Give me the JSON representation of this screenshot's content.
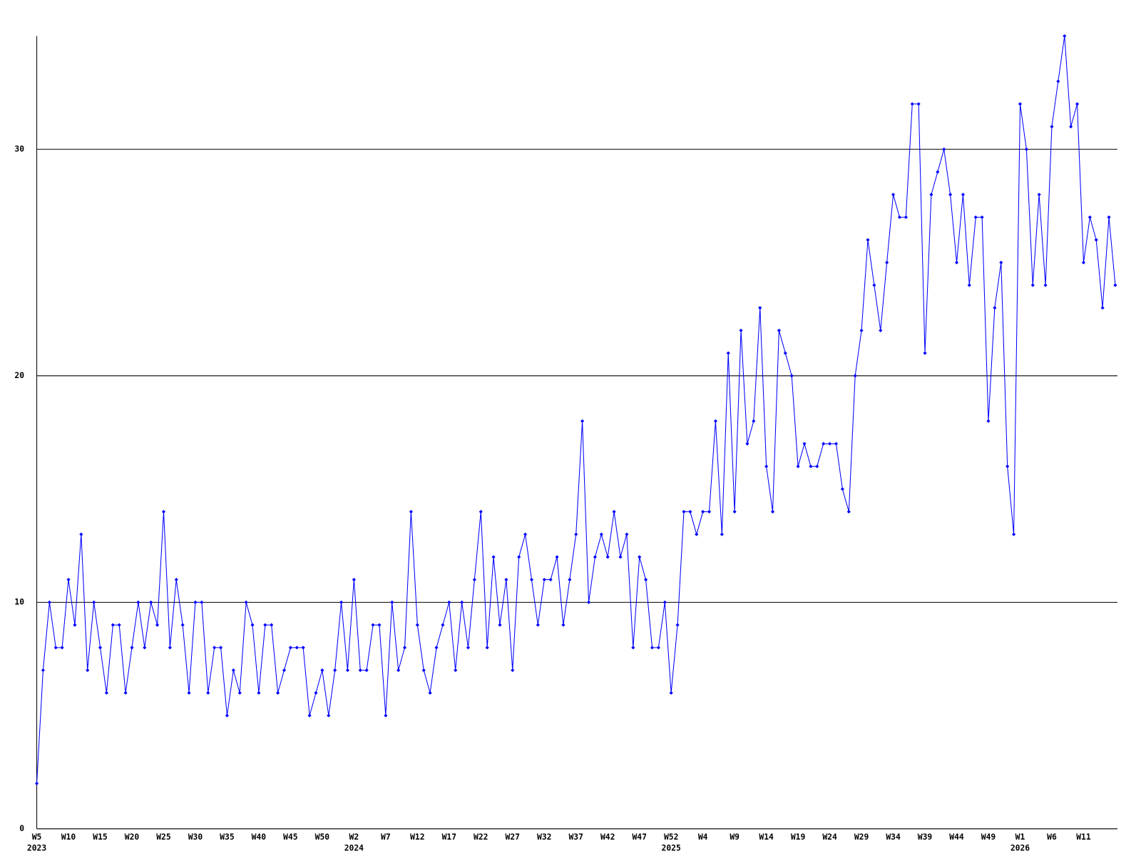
{
  "chart_data": {
    "type": "line",
    "categories": [
      "W5",
      null,
      null,
      null,
      null,
      "W10",
      null,
      null,
      null,
      null,
      "W15",
      null,
      null,
      null,
      null,
      "W20",
      null,
      null,
      null,
      null,
      "W25",
      null,
      null,
      null,
      null,
      "W30",
      null,
      null,
      null,
      null,
      "W35",
      null,
      null,
      null,
      null,
      "W40",
      null,
      null,
      null,
      null,
      "W45",
      null,
      null,
      null,
      null,
      "W50",
      null,
      null,
      null,
      null,
      "W2",
      null,
      null,
      null,
      null,
      "W7",
      null,
      null,
      null,
      null,
      "W12",
      null,
      null,
      null,
      null,
      "W17",
      null,
      null,
      null,
      null,
      "W22",
      null,
      null,
      null,
      null,
      "W27",
      null,
      null,
      null,
      null,
      "W32",
      null,
      null,
      null,
      null,
      "W37",
      null,
      null,
      null,
      null,
      "W42",
      null,
      null,
      null,
      null,
      "W47",
      null,
      null,
      null,
      null,
      "W52",
      null,
      null,
      null,
      null,
      "W4",
      null,
      null,
      null,
      null,
      "W9",
      null,
      null,
      null,
      null,
      "W14",
      null,
      null,
      null,
      null,
      "W19",
      null,
      null,
      null,
      null,
      "W24",
      null,
      null,
      null,
      null,
      "W29",
      null,
      null,
      null,
      null,
      "W34",
      null,
      null,
      null,
      null,
      "W39",
      null,
      null,
      null,
      null,
      "W44",
      null,
      null,
      null,
      null,
      "W49",
      null,
      null,
      null,
      null,
      "W1",
      null,
      null,
      null,
      null,
      "W6",
      null,
      null,
      null,
      null,
      "W11",
      null,
      null,
      null,
      null,
      null
    ],
    "category_years": [
      "2023",
      null,
      null,
      null,
      null,
      null,
      null,
      null,
      null,
      null,
      null,
      null,
      null,
      null,
      null,
      null,
      null,
      null,
      null,
      null,
      null,
      null,
      null,
      null,
      null,
      null,
      null,
      null,
      null,
      null,
      null,
      null,
      null,
      null,
      null,
      null,
      null,
      null,
      null,
      null,
      null,
      null,
      null,
      null,
      null,
      null,
      null,
      null,
      null,
      null,
      "2024",
      null,
      null,
      null,
      null,
      null,
      null,
      null,
      null,
      null,
      null,
      null,
      null,
      null,
      null,
      null,
      null,
      null,
      null,
      null,
      null,
      null,
      null,
      null,
      null,
      null,
      null,
      null,
      null,
      null,
      null,
      null,
      null,
      null,
      null,
      null,
      null,
      null,
      null,
      null,
      null,
      null,
      null,
      null,
      null,
      null,
      null,
      null,
      null,
      null,
      "2025",
      null,
      null,
      null,
      null,
      null,
      null,
      null,
      null,
      null,
      null,
      null,
      null,
      null,
      null,
      null,
      null,
      null,
      null,
      null,
      null,
      null,
      null,
      null,
      null,
      null,
      null,
      null,
      null,
      null,
      null,
      null,
      null,
      null,
      null,
      null,
      null,
      null,
      null,
      null,
      null,
      null,
      null,
      null,
      null,
      null,
      null,
      null,
      null,
      null,
      null,
      null,
      null,
      null,
      null,
      "2026",
      null,
      null,
      null,
      null,
      null,
      null,
      null,
      null,
      null,
      null,
      null,
      null,
      null,
      null,
      null
    ],
    "series": [
      {
        "color": "#0000ff",
        "values": [
          2,
          7,
          10,
          8,
          8,
          11,
          9,
          13,
          7,
          10,
          8,
          6,
          9,
          9,
          6,
          8,
          10,
          8,
          10,
          9,
          14,
          8,
          11,
          9,
          6,
          10,
          10,
          6,
          8,
          8,
          5,
          7,
          6,
          10,
          9,
          6,
          9,
          9,
          6,
          7,
          8,
          8,
          8,
          5,
          6,
          7,
          5,
          7,
          10,
          7,
          11,
          7,
          7,
          9,
          9,
          5,
          10,
          7,
          8,
          14,
          9,
          7,
          6,
          8,
          9,
          10,
          7,
          10,
          8,
          11,
          14,
          8,
          12,
          9,
          11,
          7,
          12,
          13,
          11,
          9,
          11,
          11,
          12,
          9,
          11,
          13,
          18,
          10,
          12,
          13,
          12,
          14,
          12,
          13,
          8,
          12,
          11,
          8,
          8,
          10,
          6,
          9,
          14,
          14,
          13,
          14,
          14,
          18,
          13,
          21,
          14,
          22,
          17,
          18,
          23,
          16,
          14,
          22,
          21,
          20,
          16,
          17,
          16,
          16,
          17,
          17,
          17,
          15,
          14,
          20,
          22,
          26,
          24,
          22,
          25,
          28,
          27,
          27,
          32,
          32,
          21,
          28,
          29,
          30,
          28,
          25,
          28,
          24,
          27,
          27,
          18,
          23,
          25,
          16,
          13,
          32,
          30,
          24,
          28,
          24,
          31,
          33,
          35,
          31,
          32,
          25,
          27,
          26,
          23,
          27,
          24
        ]
      }
    ],
    "ylim": [
      0,
      35
    ],
    "yticks": [
      0,
      10,
      20,
      30
    ],
    "grid": true
  }
}
